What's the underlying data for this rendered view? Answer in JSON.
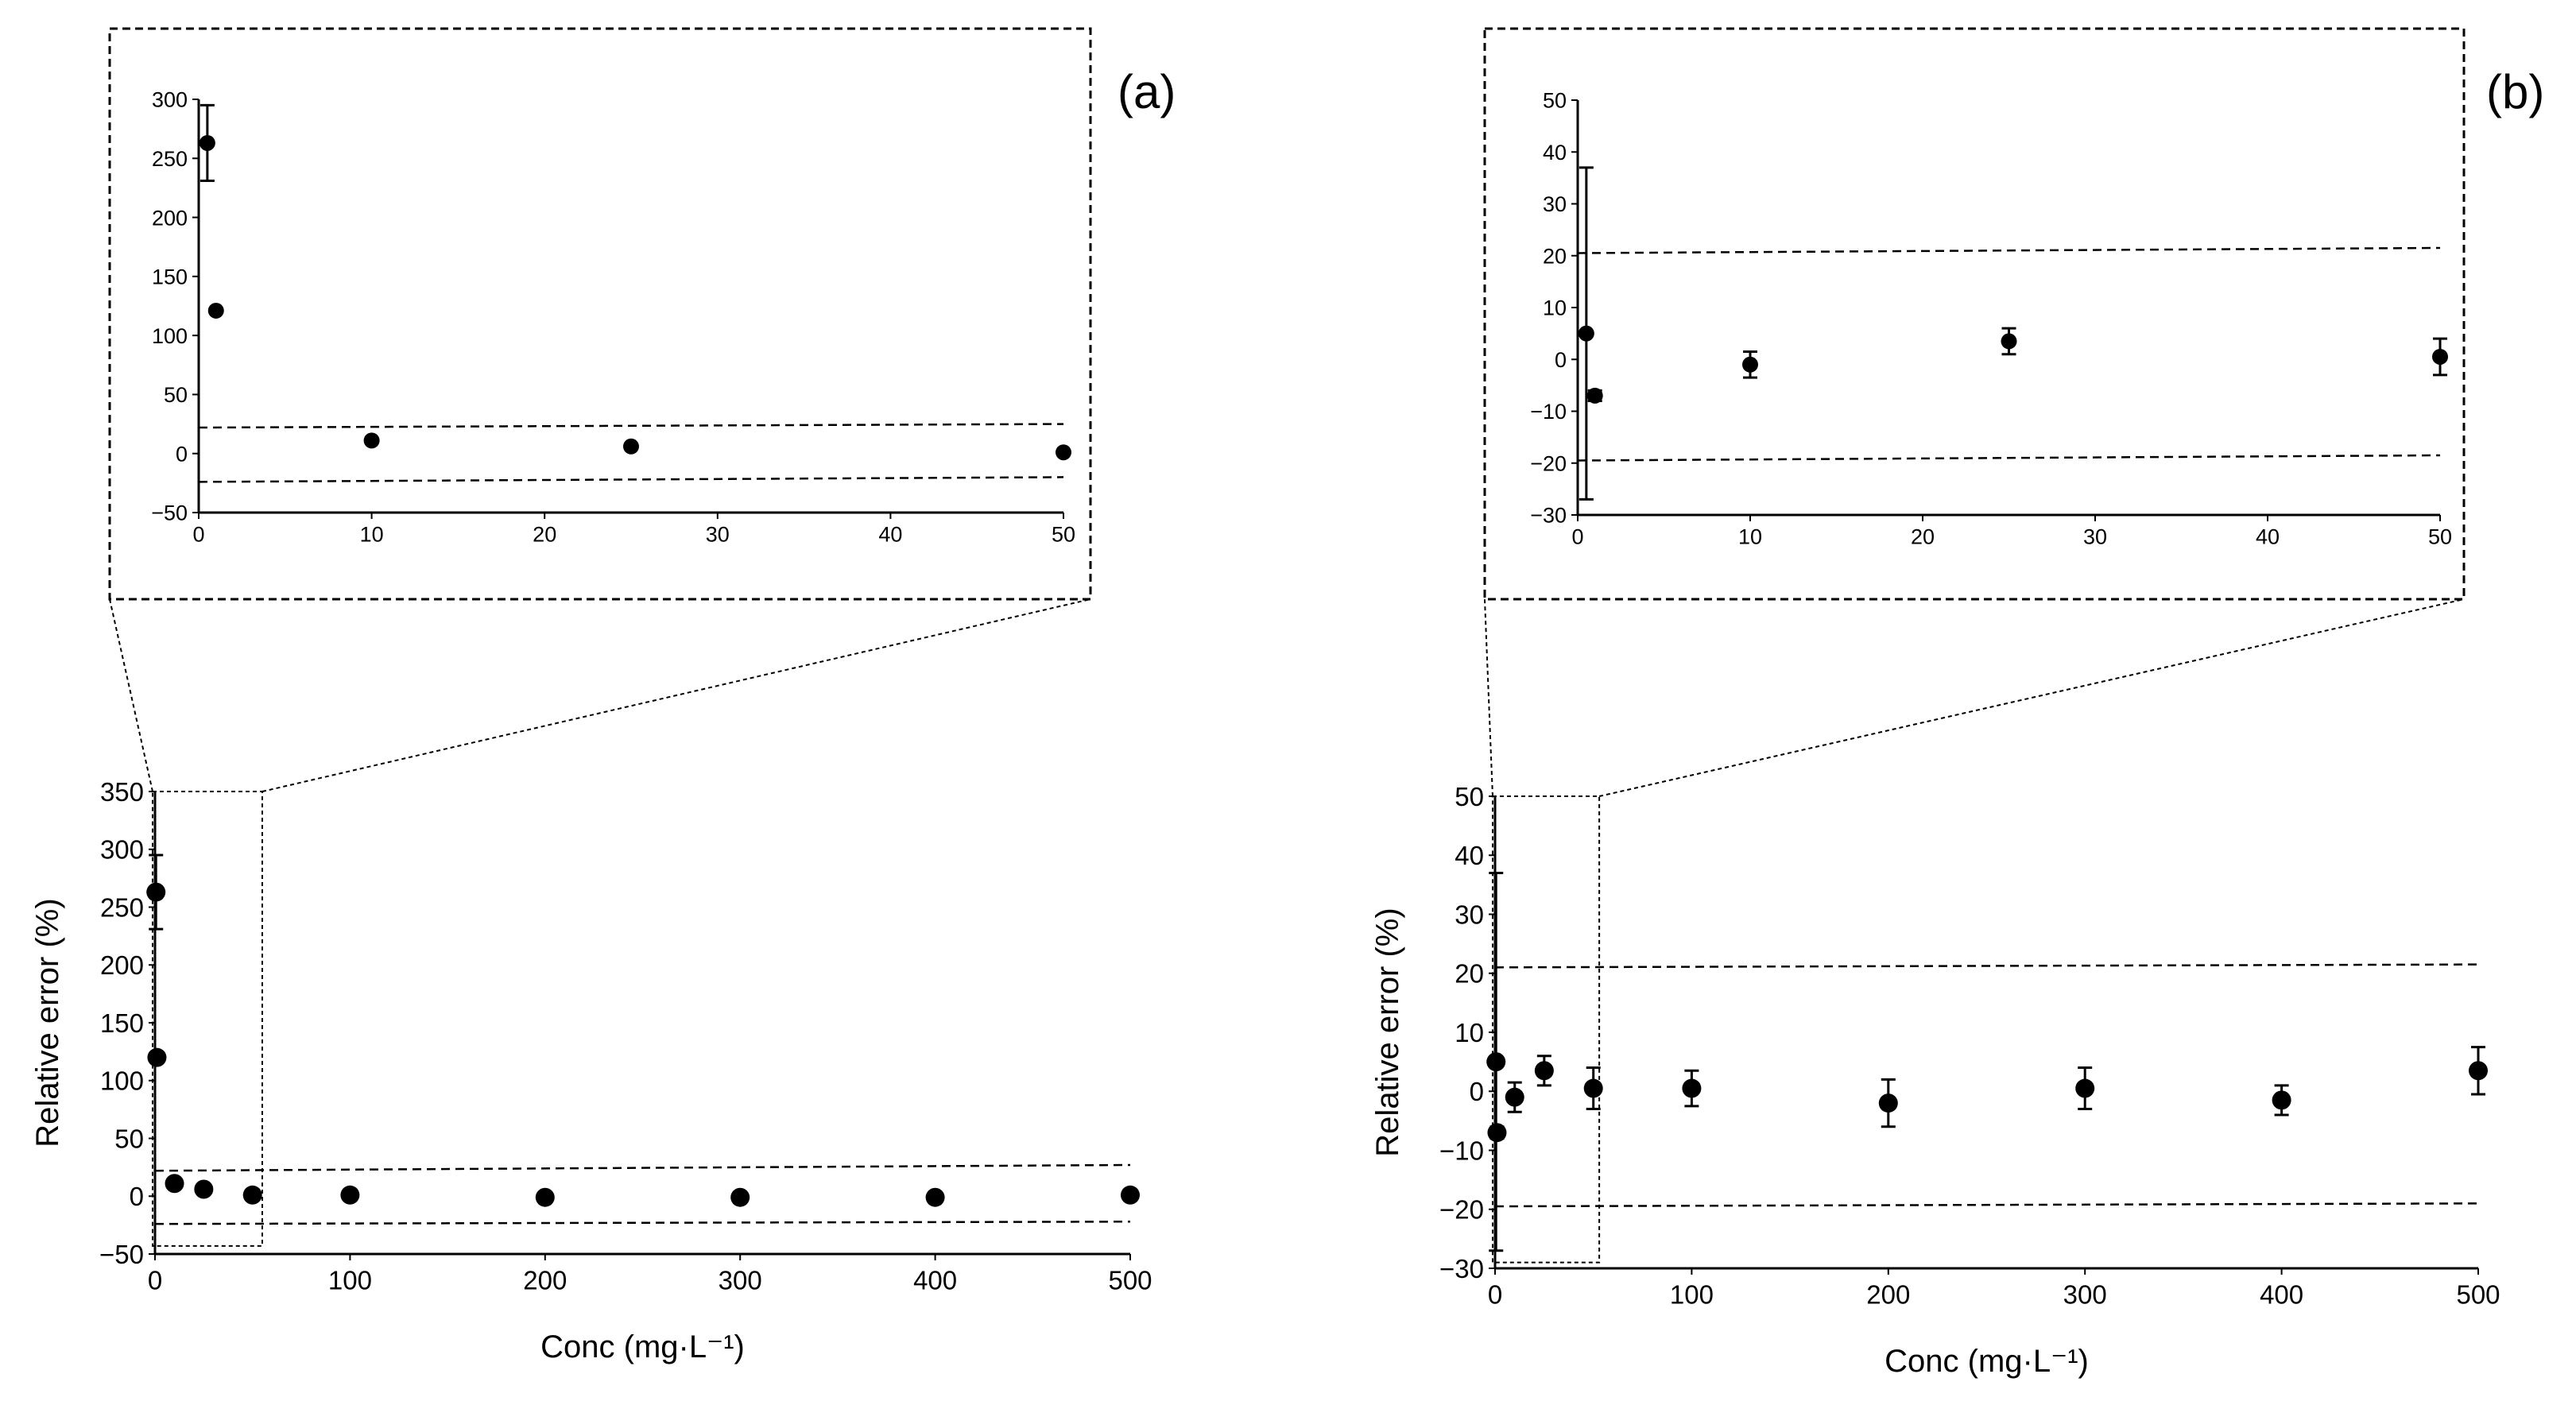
{
  "figure": {
    "panel_a_label": "(a)",
    "panel_b_label": "(b)"
  },
  "chart_data": [
    {
      "id": "a-main",
      "type": "scatter",
      "xlabel": "Conc (mg·L⁻¹)",
      "ylabel": "Relative error (%)",
      "xlim": [
        0,
        500
      ],
      "ylim": [
        -50,
        350
      ],
      "xticks": [
        0,
        100,
        200,
        300,
        400,
        500
      ],
      "yticks": [
        -50,
        0,
        50,
        100,
        150,
        200,
        250,
        300,
        350
      ],
      "tick_labels_x": [
        "0",
        "100",
        "200",
        "300",
        "400",
        "500"
      ],
      "tick_labels_y": [
        "−50",
        "0",
        "50",
        "100",
        "150",
        "200",
        "250",
        "300",
        "350"
      ],
      "series": [
        {
          "name": "relative error",
          "x": [
            0.5,
            1,
            10,
            25,
            50,
            100,
            200,
            300,
            400,
            500
          ],
          "y": [
            263,
            120,
            11,
            6,
            1,
            1,
            -1,
            -1,
            -1,
            1
          ],
          "err": [
            32,
            0,
            0,
            0,
            0,
            0,
            0,
            0,
            0,
            0
          ]
        }
      ],
      "limits": [
        {
          "name": "upper limit",
          "x": [
            0,
            500
          ],
          "y": [
            22,
            27
          ]
        },
        {
          "name": "lower limit",
          "x": [
            0,
            500
          ],
          "y": [
            -24,
            -22
          ]
        }
      ],
      "zoom_region": {
        "x": [
          0,
          55
        ],
        "y": [
          -43,
          350
        ]
      },
      "grid": false
    },
    {
      "id": "a-inset",
      "type": "scatter",
      "xlabel": "",
      "ylabel": "",
      "xlim": [
        0,
        50
      ],
      "ylim": [
        -50,
        300
      ],
      "xticks": [
        0,
        10,
        20,
        30,
        40,
        50
      ],
      "yticks": [
        -50,
        0,
        50,
        100,
        150,
        200,
        250,
        300
      ],
      "tick_labels_x": [
        "0",
        "10",
        "20",
        "30",
        "40",
        "50"
      ],
      "tick_labels_y": [
        "−50",
        "0",
        "50",
        "100",
        "150",
        "200",
        "250",
        "300"
      ],
      "series": [
        {
          "name": "relative error",
          "x": [
            0.5,
            1,
            10,
            25,
            50
          ],
          "y": [
            263,
            121,
            11,
            6,
            1
          ],
          "err": [
            32,
            0,
            0,
            0,
            0
          ]
        }
      ],
      "limits": [
        {
          "name": "upper limit",
          "x": [
            0,
            50
          ],
          "y": [
            22,
            25
          ]
        },
        {
          "name": "lower limit",
          "x": [
            0,
            50
          ],
          "y": [
            -24,
            -20
          ]
        }
      ],
      "grid": false
    },
    {
      "id": "b-main",
      "type": "scatter",
      "xlabel": "Conc (mg·L⁻¹)",
      "ylabel": "Relative error (%)",
      "xlim": [
        0,
        500
      ],
      "ylim": [
        -30,
        50
      ],
      "xticks": [
        0,
        100,
        200,
        300,
        400,
        500
      ],
      "yticks": [
        -30,
        -20,
        -10,
        0,
        10,
        20,
        30,
        40,
        50
      ],
      "tick_labels_x": [
        "0",
        "100",
        "200",
        "300",
        "400",
        "500"
      ],
      "tick_labels_y": [
        "−30",
        "−20",
        "−10",
        "0",
        "10",
        "20",
        "30",
        "40",
        "50"
      ],
      "series": [
        {
          "name": "relative error",
          "x": [
            0.5,
            1,
            10,
            25,
            50,
            100,
            200,
            300,
            400,
            500
          ],
          "y": [
            5,
            -7,
            -1,
            3.5,
            0.5,
            0.5,
            -2,
            0.5,
            -1.5,
            3.5
          ],
          "err": [
            32,
            1,
            2.5,
            2.5,
            3.5,
            3,
            4,
            3.5,
            2.5,
            4
          ]
        }
      ],
      "limits": [
        {
          "name": "upper limit",
          "x": [
            0,
            500
          ],
          "y": [
            21,
            21.5
          ]
        },
        {
          "name": "lower limit",
          "x": [
            0,
            500
          ],
          "y": [
            -19.5,
            -19
          ]
        }
      ],
      "zoom_region": {
        "x": [
          0,
          53
        ],
        "y": [
          -29,
          50
        ]
      },
      "grid": false
    },
    {
      "id": "b-inset",
      "type": "scatter",
      "xlabel": "",
      "ylabel": "",
      "xlim": [
        0,
        50
      ],
      "ylim": [
        -30,
        50
      ],
      "xticks": [
        0,
        10,
        20,
        30,
        40,
        50
      ],
      "yticks": [
        -30,
        -20,
        -10,
        0,
        10,
        20,
        30,
        40,
        50
      ],
      "tick_labels_x": [
        "0",
        "10",
        "20",
        "30",
        "40",
        "50"
      ],
      "tick_labels_y": [
        "−30",
        "−20",
        "−10",
        "0",
        "10",
        "20",
        "30",
        "40",
        "50"
      ],
      "series": [
        {
          "name": "relative error",
          "x": [
            0.5,
            1,
            10,
            25,
            50
          ],
          "y": [
            5,
            -7,
            -1,
            3.5,
            0.5
          ],
          "err": [
            32,
            1,
            2.5,
            2.5,
            3.5
          ]
        }
      ],
      "limits": [
        {
          "name": "upper limit",
          "x": [
            0,
            50
          ],
          "y": [
            20.5,
            21.5
          ]
        },
        {
          "name": "lower limit",
          "x": [
            0,
            50
          ],
          "y": [
            -19.5,
            -18.5
          ]
        }
      ],
      "grid": false
    }
  ]
}
